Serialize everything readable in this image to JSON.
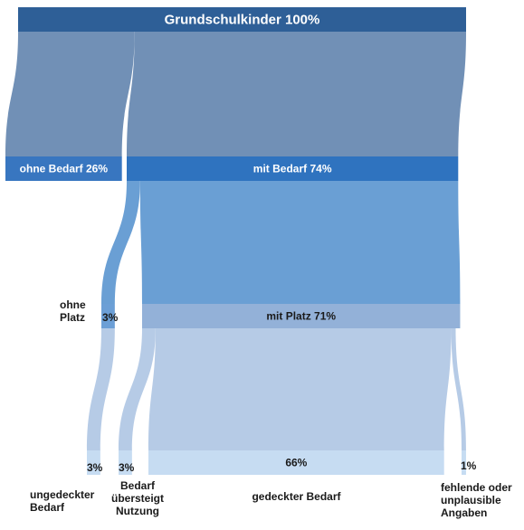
{
  "chart_data": {
    "type": "sankey",
    "nodes": [
      {
        "label": "Grundschulkinder 100%",
        "value": 100,
        "color": "#2e5f97",
        "link_color": "#7190b6"
      },
      {
        "label": "ohne Bedarf 26%",
        "value": 26,
        "color": "#3876c0"
      },
      {
        "label": "mit Bedarf 74%",
        "value": 74,
        "color": "#2f73bf",
        "link_color": "#6a9fd4"
      },
      {
        "name": "ohne Platz",
        "value_label": "3%",
        "value": 3,
        "color": "#6c9fd6",
        "link_color": "#b6cbe6"
      },
      {
        "label": "mit  Platz 71%",
        "value": 71,
        "color": "#93b1d8",
        "link_color": "#b6cbe6"
      },
      {
        "name": "ungedeckter Bedarf",
        "value_label": "3%",
        "value": 3,
        "color": "#c6dcf2"
      },
      {
        "name": "Bedarf übersteigt Nutzung",
        "value_label": "3%",
        "value": 3,
        "color": "#c6dcf2"
      },
      {
        "name": "gedeckter Bedarf",
        "label": "66%",
        "value": 66,
        "color": "#c6dcf2"
      },
      {
        "name": "fehlende oder unplausible Angaben",
        "value_label": "1%",
        "value": 1,
        "color": "#c6dcf2"
      }
    ]
  }
}
